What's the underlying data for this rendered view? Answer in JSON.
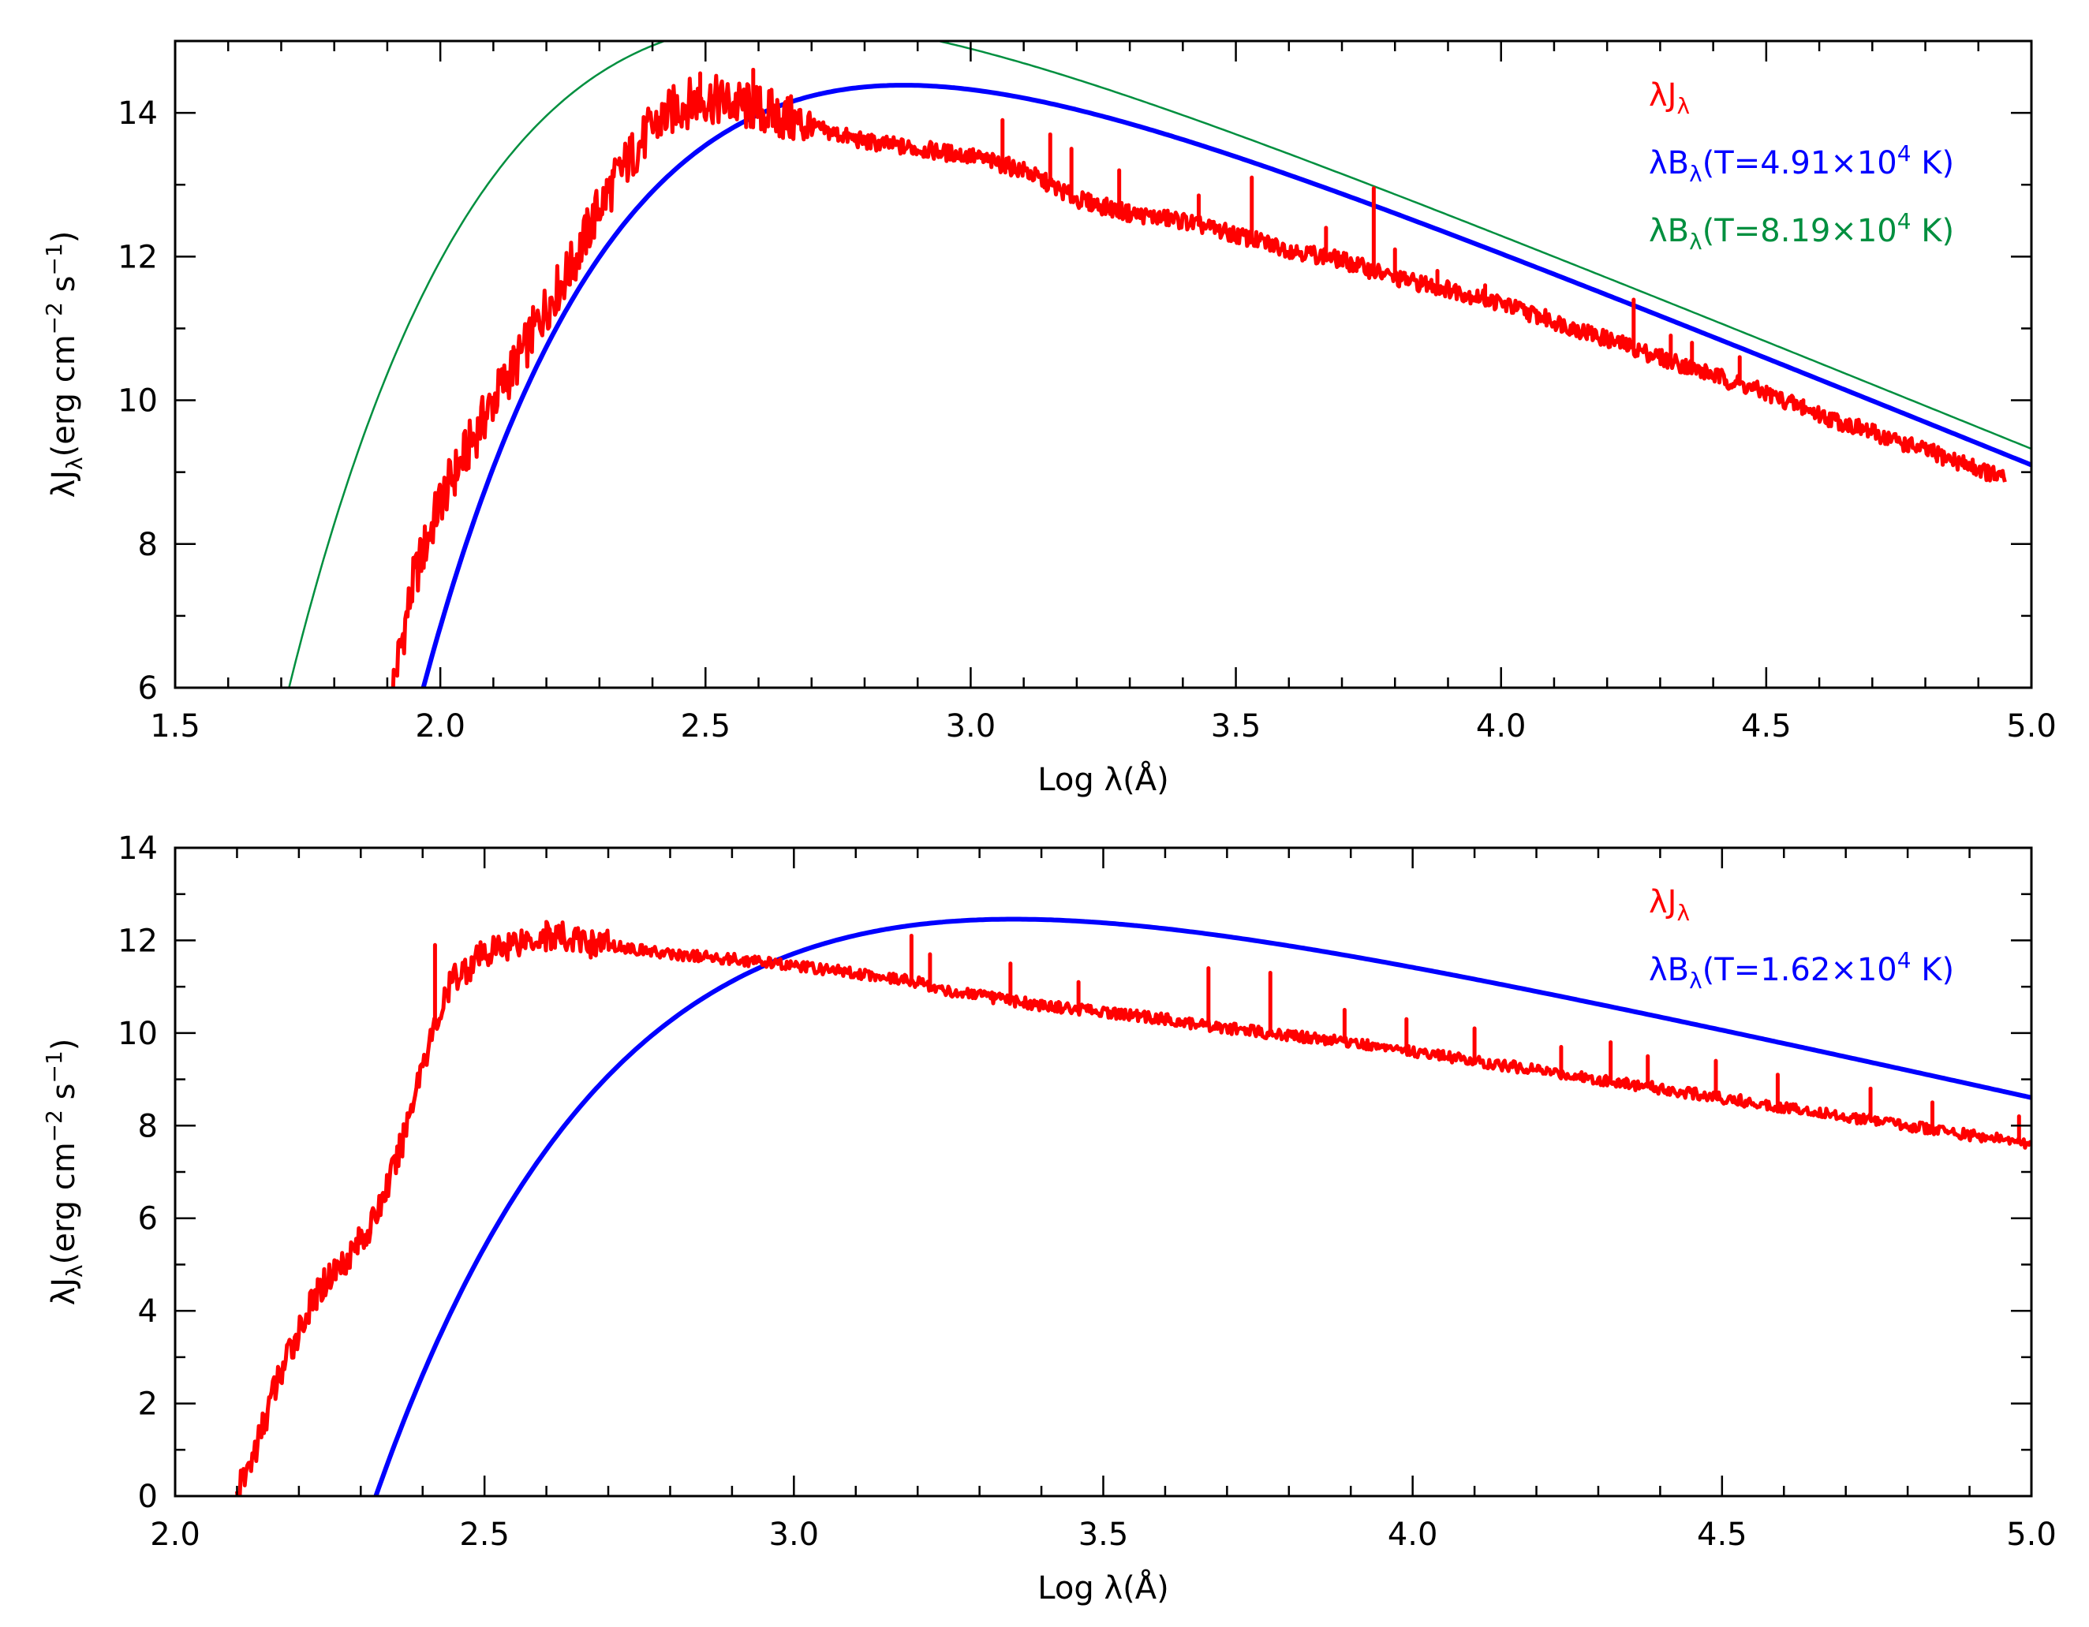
{
  "chart_data": [
    {
      "type": "line",
      "id": "top",
      "xlabel_prefix": "Log ",
      "xlabel_sym": "λ",
      "xlabel_unit": "(Å)",
      "ylabel_main": "λJ",
      "ylabel_sub": "λ",
      "ylabel_units_a": "(erg cm",
      "ylabel_units_exp_a": "−2",
      "ylabel_units_b": " s",
      "ylabel_units_exp_b": "−1",
      "ylabel_units_c": ")",
      "xlim": [
        1.5,
        5.0
      ],
      "ylim": [
        6,
        15
      ],
      "xticks": [
        "1.5",
        "2.0",
        "2.5",
        "3.0",
        "3.5",
        "4.0",
        "4.5",
        "5.0"
      ],
      "yticks": [
        "6",
        "8",
        "10",
        "12",
        "14"
      ],
      "legend": [
        {
          "main": "λJ",
          "sub": "λ",
          "rest": "",
          "exp": "",
          "tail": "",
          "color": "#ff0000"
        },
        {
          "main": "λB",
          "sub": "λ",
          "rest": "(T=4.91×10",
          "exp": "4",
          "tail": " K)",
          "color": "#0000ff"
        },
        {
          "main": "λB",
          "sub": "λ",
          "rest": "(T=8.19×10",
          "exp": "4",
          "tail": " K)",
          "color": "#008f3f"
        }
      ],
      "series": [
        {
          "name": "λJλ (observed)",
          "color": "#ff0000",
          "x": [
            1.91,
            1.95,
            2.0,
            2.05,
            2.1,
            2.15,
            2.2,
            2.25,
            2.3,
            2.35,
            2.4,
            2.45,
            2.5,
            2.6,
            2.7,
            2.8,
            2.9,
            3.0,
            3.1,
            3.2,
            3.3,
            3.4,
            3.5,
            3.6,
            3.7,
            3.8,
            3.9,
            4.0,
            4.1,
            4.2,
            4.3,
            4.4,
            4.5,
            4.6,
            4.7,
            4.8,
            4.9,
            4.95
          ],
          "y": [
            6.0,
            7.5,
            8.6,
            9.3,
            10.0,
            10.6,
            11.3,
            11.9,
            12.7,
            13.3,
            13.8,
            14.1,
            14.2,
            14.05,
            13.8,
            13.6,
            13.5,
            13.4,
            13.2,
            12.8,
            12.6,
            12.5,
            12.3,
            12.1,
            11.95,
            11.7,
            11.55,
            11.35,
            11.1,
            10.85,
            10.6,
            10.35,
            10.1,
            9.8,
            9.55,
            9.3,
            9.05,
            8.9
          ],
          "spikes": [
            [
              2.49,
              14.55
            ],
            [
              2.59,
              14.6
            ],
            [
              2.62,
              14.3
            ],
            [
              3.06,
              13.9
            ],
            [
              3.15,
              13.7
            ],
            [
              3.19,
              13.5
            ],
            [
              3.28,
              13.2
            ],
            [
              3.43,
              12.85
            ],
            [
              3.53,
              13.1
            ],
            [
              3.67,
              12.4
            ],
            [
              3.76,
              12.95
            ],
            [
              3.8,
              12.1
            ],
            [
              3.88,
              11.8
            ],
            [
              3.97,
              11.6
            ],
            [
              4.25,
              11.4
            ],
            [
              4.32,
              10.9
            ],
            [
              4.36,
              10.8
            ],
            [
              4.45,
              10.6
            ],
            [
              4.57,
              10.0
            ],
            [
              4.7,
              9.6
            ],
            [
              4.82,
              9.2
            ],
            [
              4.93,
              8.9
            ]
          ]
        },
        {
          "name": "λBλ(T=4.91×10^4 K)",
          "color": "#0000ff",
          "T": 49100
        },
        {
          "name": "λBλ(T=8.19×10^4 K)",
          "color": "#008f3f",
          "T": 81900
        }
      ]
    },
    {
      "type": "line",
      "id": "bottom",
      "xlabel_prefix": "Log ",
      "xlabel_sym": "λ",
      "xlabel_unit": "(Å)",
      "ylabel_main": "λJ",
      "ylabel_sub": "λ",
      "ylabel_units_a": "(erg cm",
      "ylabel_units_exp_a": "−2",
      "ylabel_units_b": " s",
      "ylabel_units_exp_b": "−1",
      "ylabel_units_c": ")",
      "xlim": [
        2.0,
        5.0
      ],
      "ylim": [
        0,
        14
      ],
      "xticks": [
        "2.0",
        "2.5",
        "3.0",
        "3.5",
        "4.0",
        "4.5",
        "5.0"
      ],
      "yticks": [
        "0",
        "2",
        "4",
        "6",
        "8",
        "10",
        "12",
        "14"
      ],
      "legend": [
        {
          "main": "λJ",
          "sub": "λ",
          "rest": "",
          "exp": "",
          "tail": "",
          "color": "#ff0000"
        },
        {
          "main": "λB",
          "sub": "λ",
          "rest": "(T=1.62×10",
          "exp": "4",
          "tail": " K)",
          "color": "#0000ff"
        }
      ],
      "series": [
        {
          "name": "λJλ (observed)",
          "color": "#ff0000",
          "x": [
            2.1,
            2.13,
            2.16,
            2.2,
            2.24,
            2.28,
            2.32,
            2.36,
            2.4,
            2.45,
            2.5,
            2.55,
            2.6,
            2.7,
            2.8,
            2.9,
            3.0,
            3.1,
            3.2,
            3.25,
            3.3,
            3.4,
            3.5,
            3.6,
            3.7,
            3.8,
            3.9,
            4.0,
            4.1,
            4.2,
            4.3,
            4.4,
            4.5,
            4.6,
            4.7,
            4.8,
            4.9,
            5.0
          ],
          "y": [
            0.0,
            1.0,
            2.3,
            3.6,
            4.6,
            5.2,
            5.9,
            7.3,
            9.4,
            11.2,
            11.7,
            12.0,
            12.1,
            11.9,
            11.7,
            11.6,
            11.45,
            11.3,
            11.1,
            10.9,
            10.8,
            10.6,
            10.45,
            10.3,
            10.1,
            9.95,
            9.8,
            9.6,
            9.4,
            9.2,
            9.0,
            8.8,
            8.6,
            8.4,
            8.2,
            8.0,
            7.8,
            7.6
          ],
          "spikes": [
            [
              2.42,
              11.9
            ],
            [
              2.6,
              12.4
            ],
            [
              3.19,
              12.1
            ],
            [
              3.22,
              11.7
            ],
            [
              3.35,
              11.5
            ],
            [
              3.46,
              11.1
            ],
            [
              3.67,
              11.4
            ],
            [
              3.77,
              11.3
            ],
            [
              3.89,
              10.5
            ],
            [
              3.99,
              10.3
            ],
            [
              4.1,
              10.1
            ],
            [
              4.24,
              9.7
            ],
            [
              4.32,
              9.8
            ],
            [
              4.38,
              9.5
            ],
            [
              4.49,
              9.4
            ],
            [
              4.59,
              9.1
            ],
            [
              4.74,
              8.8
            ],
            [
              4.84,
              8.5
            ],
            [
              4.98,
              8.2
            ]
          ]
        },
        {
          "name": "λBλ(T=1.62×10^4 K)",
          "color": "#0000ff",
          "T": 16200
        }
      ]
    }
  ]
}
